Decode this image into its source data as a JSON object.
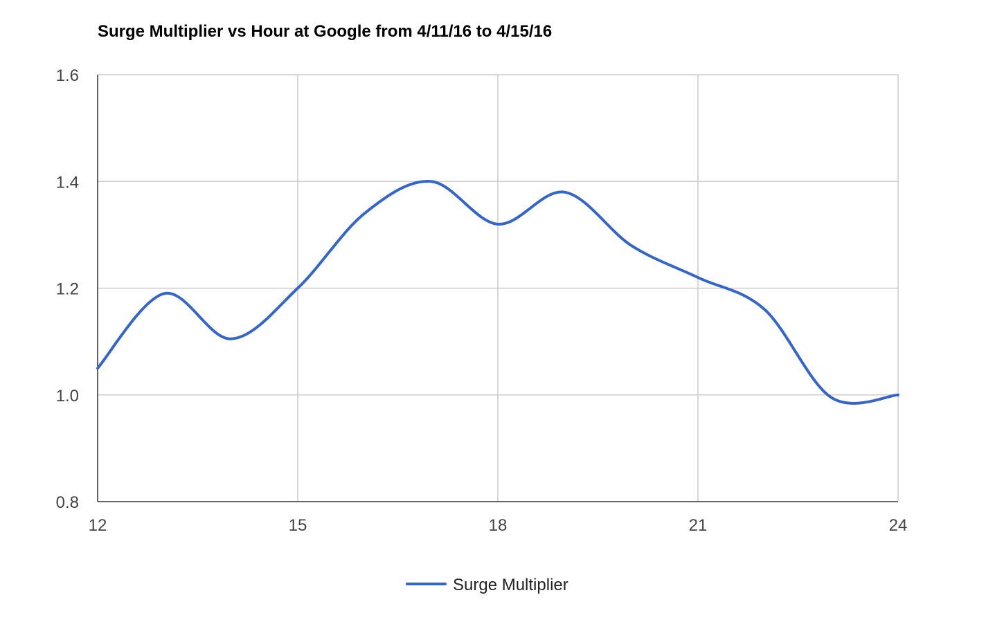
{
  "chart_data": {
    "type": "line",
    "title": "Surge Multiplier vs Hour at Google from 4/11/16 to 4/15/16",
    "xlabel": "",
    "ylabel": "",
    "xlim": [
      12,
      24
    ],
    "ylim": [
      0.8,
      1.6
    ],
    "x_ticks": [
      "12",
      "15",
      "18",
      "21",
      "24"
    ],
    "y_ticks": [
      "0.8",
      "1.0",
      "1.2",
      "1.4",
      "1.6"
    ],
    "grid": true,
    "legend": "bottom",
    "colors": {
      "series": "#3366cc",
      "grid": "#cccccc",
      "axis": "#333333"
    },
    "series": [
      {
        "name": "Surge Multiplier",
        "x": [
          12,
          13,
          14,
          15,
          16,
          17,
          18,
          19,
          20,
          21,
          22,
          23,
          24
        ],
        "y": [
          1.05,
          1.19,
          1.105,
          1.2,
          1.34,
          1.4,
          1.32,
          1.38,
          1.28,
          1.22,
          1.16,
          0.995,
          1.0
        ]
      }
    ]
  }
}
